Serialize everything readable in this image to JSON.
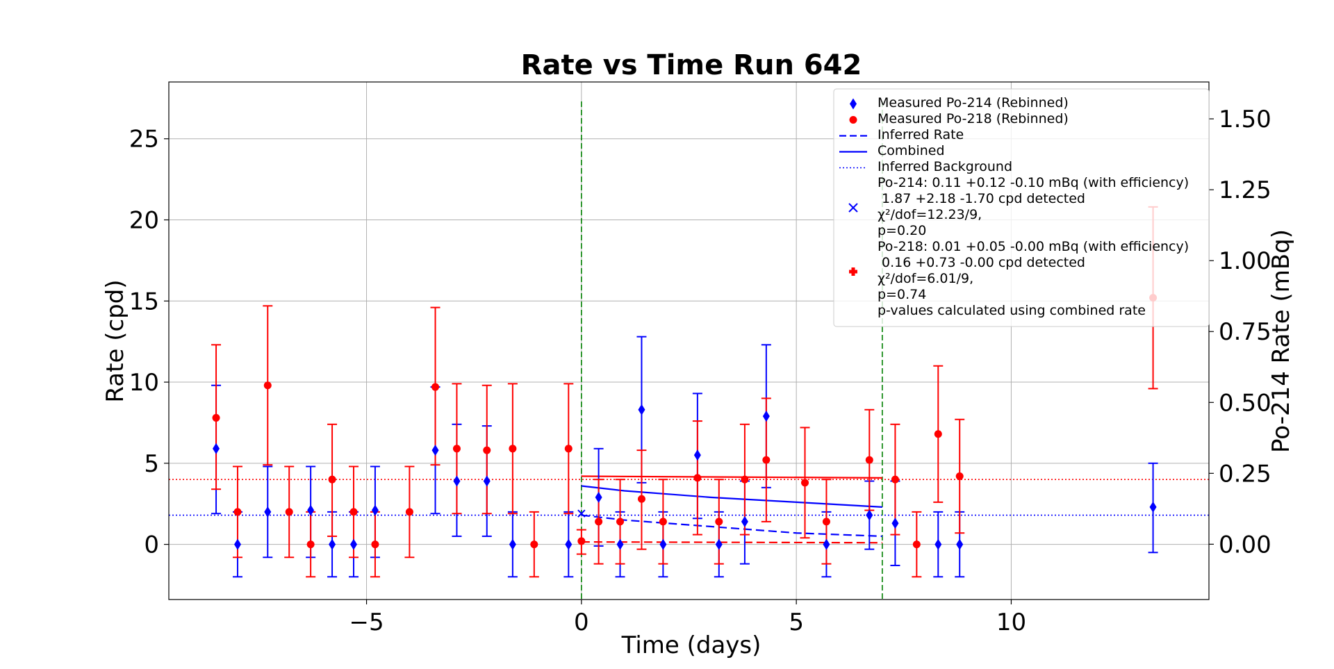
{
  "chart_data": {
    "type": "scatter",
    "title": "Rate vs Time Run 642",
    "xlabel": "Time (days)",
    "ylabel": "Rate (cpd)",
    "y2label": "Po-214 Rate (mBq)",
    "xlim": [
      -9.6,
      14.6
    ],
    "ylim": [
      -3.4,
      28.5
    ],
    "y2lim": [
      -0.195,
      1.63
    ],
    "xticks": [
      -5,
      0,
      5,
      10
    ],
    "xtick_labels": [
      "−5",
      "0",
      "5",
      "10"
    ],
    "yticks": [
      0,
      5,
      10,
      15,
      20,
      25
    ],
    "ytick_labels": [
      "0",
      "5",
      "10",
      "15",
      "20",
      "25"
    ],
    "y2ticks": [
      0.0,
      0.25,
      0.5,
      0.75,
      1.0,
      1.25,
      1.5
    ],
    "y2tick_labels": [
      "0.00",
      "0.25",
      "0.50",
      "0.75",
      "1.00",
      "1.25",
      "1.50"
    ],
    "grid": true,
    "legend_position": "top-right",
    "colors": {
      "po214": "#0000ff",
      "po218": "#ff0000",
      "marker_line": "#008000"
    },
    "series": [
      {
        "name": "Measured Po-214 (Rebinned)",
        "marker": "diamond",
        "color": "#0000ff",
        "points": [
          {
            "x": -8.5,
            "y": 5.9,
            "lo": 1.9,
            "hi": 9.8
          },
          {
            "x": -8.0,
            "y": 0.0,
            "lo": -2.0,
            "hi": 2.0
          },
          {
            "x": -7.3,
            "y": 2.0,
            "lo": -0.8,
            "hi": 4.8
          },
          {
            "x": -6.3,
            "y": 2.1,
            "lo": -0.8,
            "hi": 4.8
          },
          {
            "x": -5.8,
            "y": 0.0,
            "lo": -2.0,
            "hi": 2.0
          },
          {
            "x": -5.3,
            "y": 0.0,
            "lo": -2.0,
            "hi": 2.0
          },
          {
            "x": -4.8,
            "y": 2.1,
            "lo": -0.8,
            "hi": 4.8
          },
          {
            "x": -3.4,
            "y": 5.8,
            "lo": 1.9,
            "hi": 9.7
          },
          {
            "x": -2.9,
            "y": 3.9,
            "lo": 0.5,
            "hi": 7.4
          },
          {
            "x": -2.2,
            "y": 3.9,
            "lo": 0.5,
            "hi": 7.3
          },
          {
            "x": -1.6,
            "y": 0.0,
            "lo": -2.0,
            "hi": 2.0
          },
          {
            "x": -0.3,
            "y": 0.0,
            "lo": -2.0,
            "hi": 2.0
          },
          {
            "x": 0.4,
            "y": 2.9,
            "lo": -0.1,
            "hi": 5.9
          },
          {
            "x": 0.9,
            "y": 0.0,
            "lo": -2.0,
            "hi": 2.0
          },
          {
            "x": 1.4,
            "y": 8.3,
            "lo": 3.8,
            "hi": 12.8
          },
          {
            "x": 1.9,
            "y": 0.0,
            "lo": -2.0,
            "hi": 2.0
          },
          {
            "x": 2.7,
            "y": 5.5,
            "lo": 1.6,
            "hi": 9.3
          },
          {
            "x": 3.2,
            "y": 0.0,
            "lo": -2.0,
            "hi": 2.0
          },
          {
            "x": 3.8,
            "y": 1.4,
            "lo": -1.2,
            "hi": 3.9
          },
          {
            "x": 4.3,
            "y": 7.9,
            "lo": 3.5,
            "hi": 12.3
          },
          {
            "x": 5.7,
            "y": 0.0,
            "lo": -2.0,
            "hi": 2.0
          },
          {
            "x": 6.7,
            "y": 1.8,
            "lo": -0.3,
            "hi": 3.9
          },
          {
            "x": 7.3,
            "y": 1.3,
            "lo": -1.3,
            "hi": 3.9
          },
          {
            "x": 8.3,
            "y": 0.0,
            "lo": -2.0,
            "hi": 2.0
          },
          {
            "x": 8.8,
            "y": 0.0,
            "lo": -2.0,
            "hi": 2.0
          },
          {
            "x": 13.3,
            "y": 2.3,
            "lo": -0.5,
            "hi": 5.0
          }
        ]
      },
      {
        "name": "Measured Po-218 (Rebinned)",
        "marker": "circle",
        "color": "#ff0000",
        "points": [
          {
            "x": -8.5,
            "y": 7.8,
            "lo": 3.4,
            "hi": 12.3
          },
          {
            "x": -8.0,
            "y": 2.0,
            "lo": -0.8,
            "hi": 4.8
          },
          {
            "x": -7.3,
            "y": 9.8,
            "lo": 4.9,
            "hi": 14.7
          },
          {
            "x": -6.8,
            "y": 2.0,
            "lo": -0.8,
            "hi": 4.8
          },
          {
            "x": -6.3,
            "y": 0.0,
            "lo": -2.0,
            "hi": 2.0
          },
          {
            "x": -5.8,
            "y": 4.0,
            "lo": 0.5,
            "hi": 7.4
          },
          {
            "x": -5.3,
            "y": 2.0,
            "lo": -0.8,
            "hi": 4.8
          },
          {
            "x": -4.8,
            "y": 0.0,
            "lo": -2.0,
            "hi": 2.0
          },
          {
            "x": -4.0,
            "y": 2.0,
            "lo": -0.8,
            "hi": 4.8
          },
          {
            "x": -3.4,
            "y": 9.7,
            "lo": 4.9,
            "hi": 14.6
          },
          {
            "x": -2.9,
            "y": 5.9,
            "lo": 1.9,
            "hi": 9.9
          },
          {
            "x": -2.2,
            "y": 5.8,
            "lo": 1.9,
            "hi": 9.8
          },
          {
            "x": -1.6,
            "y": 5.9,
            "lo": 1.9,
            "hi": 9.9
          },
          {
            "x": -1.1,
            "y": 0.0,
            "lo": -2.0,
            "hi": 2.0
          },
          {
            "x": -0.3,
            "y": 5.9,
            "lo": 1.9,
            "hi": 9.9
          },
          {
            "x": 0.0,
            "y": 0.2,
            "lo": -0.6,
            "hi": 0.9
          },
          {
            "x": 0.4,
            "y": 1.4,
            "lo": -1.2,
            "hi": 4.0
          },
          {
            "x": 0.9,
            "y": 1.4,
            "lo": -1.2,
            "hi": 4.0
          },
          {
            "x": 1.4,
            "y": 2.8,
            "lo": -0.3,
            "hi": 5.8
          },
          {
            "x": 1.9,
            "y": 1.4,
            "lo": -1.2,
            "hi": 4.0
          },
          {
            "x": 2.7,
            "y": 4.1,
            "lo": 0.6,
            "hi": 7.6
          },
          {
            "x": 3.2,
            "y": 1.4,
            "lo": -1.2,
            "hi": 4.0
          },
          {
            "x": 3.8,
            "y": 4.0,
            "lo": 0.6,
            "hi": 7.4
          },
          {
            "x": 4.3,
            "y": 5.2,
            "lo": 1.4,
            "hi": 9.0
          },
          {
            "x": 5.2,
            "y": 3.8,
            "lo": 0.4,
            "hi": 7.2
          },
          {
            "x": 5.7,
            "y": 1.4,
            "lo": -1.2,
            "hi": 4.0
          },
          {
            "x": 6.7,
            "y": 5.2,
            "lo": 2.1,
            "hi": 8.3
          },
          {
            "x": 7.3,
            "y": 4.0,
            "lo": 0.6,
            "hi": 7.4
          },
          {
            "x": 7.8,
            "y": 0.0,
            "lo": -2.0,
            "hi": 2.0
          },
          {
            "x": 8.3,
            "y": 6.8,
            "lo": 2.6,
            "hi": 11.0
          },
          {
            "x": 8.8,
            "y": 4.2,
            "lo": 0.7,
            "hi": 7.7
          },
          {
            "x": 13.3,
            "y": 15.2,
            "lo": 9.6,
            "hi": 20.8
          }
        ]
      },
      {
        "name": "Inferred Rate",
        "style": "dashed",
        "curves": [
          {
            "color": "#0000ff",
            "x": [
              0,
              1,
              2,
              3,
              4,
              5,
              6,
              7
            ],
            "y": [
              1.8,
              1.5,
              1.3,
              1.1,
              0.9,
              0.7,
              0.6,
              0.5
            ]
          },
          {
            "color": "#ff0000",
            "x": [
              0,
              7
            ],
            "y": [
              0.15,
              0.1
            ]
          }
        ]
      },
      {
        "name": "Combined",
        "style": "solid",
        "curves": [
          {
            "color": "#0000ff",
            "x": [
              0,
              1,
              2,
              3,
              4,
              5,
              6,
              7
            ],
            "y": [
              3.6,
              3.3,
              3.1,
              2.9,
              2.75,
              2.6,
              2.45,
              2.3
            ]
          },
          {
            "color": "#ff0000",
            "x": [
              0,
              7
            ],
            "y": [
              4.2,
              4.1
            ]
          }
        ]
      },
      {
        "name": "Inferred Background",
        "style": "dotted",
        "curves": [
          {
            "color": "#0000ff",
            "x": [
              -9.6,
              14.6
            ],
            "y": [
              1.8,
              1.8
            ]
          },
          {
            "color": "#ff0000",
            "x": [
              -9.6,
              14.6
            ],
            "y": [
              4.0,
              4.0
            ]
          }
        ]
      }
    ],
    "fit_markers": [
      {
        "color": "#0000ff",
        "marker": "x",
        "x": 0.0,
        "y": 1.9
      }
    ],
    "vlines": [
      {
        "x": 0.0,
        "y_top": 27.3,
        "color": "#008000"
      },
      {
        "x": 7.0,
        "y_top": 27.3,
        "color": "#008000"
      }
    ],
    "legend": [
      {
        "id": "po214",
        "type": "diamond",
        "color": "#0000ff",
        "lines": [
          "Measured Po-214 (Rebinned)"
        ]
      },
      {
        "id": "po218",
        "type": "circle",
        "color": "#ff0000",
        "lines": [
          "Measured Po-218 (Rebinned)"
        ]
      },
      {
        "id": "inferred-rate",
        "type": "dashed",
        "color": "#0000ff",
        "lines": [
          "Inferred Rate"
        ]
      },
      {
        "id": "combined",
        "type": "solid",
        "color": "#0000ff",
        "lines": [
          "Combined"
        ]
      },
      {
        "id": "inferred-bg",
        "type": "dotted",
        "color": "#0000ff",
        "lines": [
          "Inferred Background"
        ]
      },
      {
        "id": "po214-fit",
        "type": "x",
        "color": "#0000ff",
        "lines": [
          "Po-214: 0.11 +0.12 -0.10 mBq (with efficiency)",
          " 1.87 +2.18 -1.70 cpd detected",
          "χ²/dof=12.23/9,",
          "p=0.20"
        ]
      },
      {
        "id": "po218-fit",
        "type": "plus",
        "color": "#ff0000",
        "lines": [
          "Po-218: 0.01 +0.05 -0.00 mBq (with efficiency)",
          " 0.16 +0.73 -0.00 cpd detected",
          "χ²/dof=6.01/9,",
          "p=0.74"
        ]
      },
      {
        "id": "pvalue-note",
        "type": "none",
        "color": "#000000",
        "lines": [
          "p-values calculated using combined rate"
        ]
      }
    ]
  }
}
